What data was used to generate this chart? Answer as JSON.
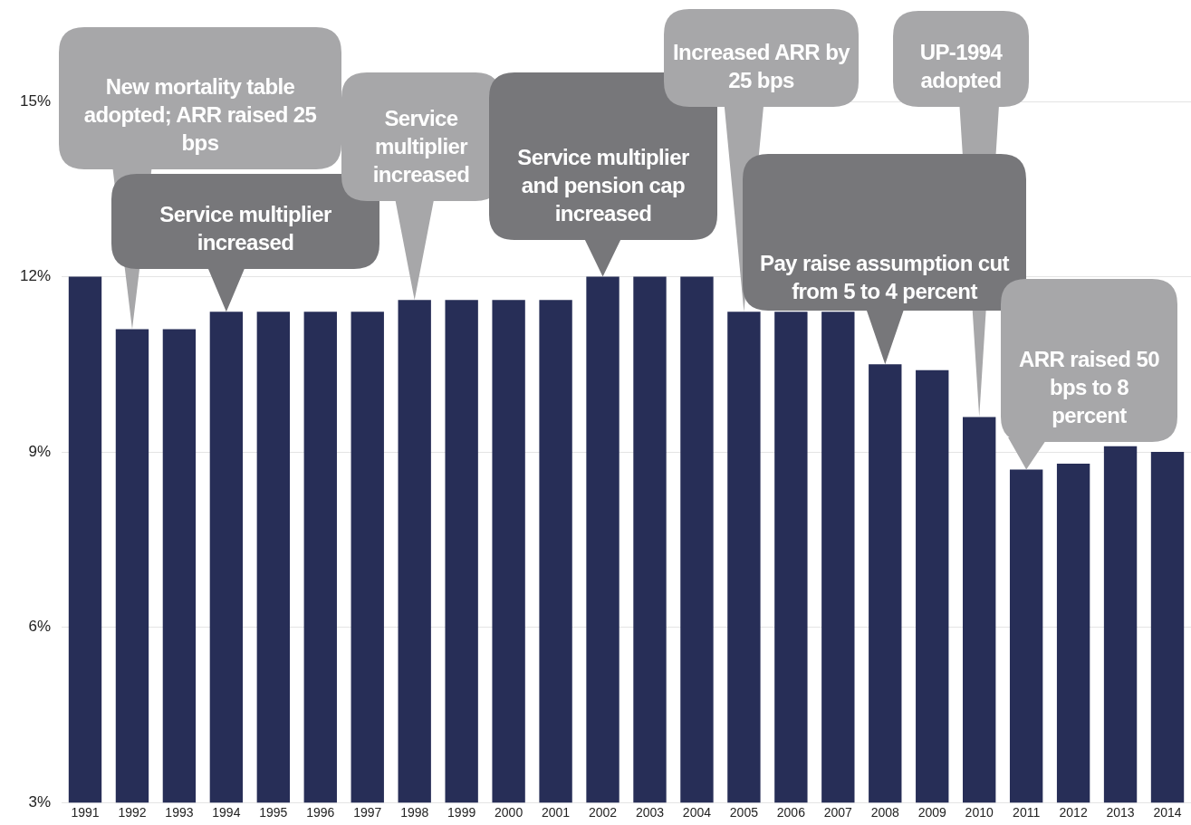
{
  "chart_data": {
    "type": "bar",
    "categories": [
      "1991",
      "1992",
      "1993",
      "1994",
      "1995",
      "1996",
      "1997",
      "1998",
      "1999",
      "2000",
      "2001",
      "2002",
      "2003",
      "2004",
      "2005",
      "2006",
      "2007",
      "2008",
      "2009",
      "2010",
      "2011",
      "2012",
      "2013",
      "2014"
    ],
    "values": [
      12.0,
      11.1,
      11.1,
      11.4,
      11.4,
      11.4,
      11.4,
      11.6,
      11.6,
      11.6,
      11.6,
      12.0,
      12.0,
      12.0,
      11.4,
      11.4,
      11.4,
      10.5,
      10.4,
      9.6,
      8.7,
      8.8,
      9.1,
      9.0
    ],
    "color": "#272e57",
    "ylim": [
      3,
      15
    ],
    "yticks": [
      {
        "value": 3,
        "label": "3%"
      },
      {
        "value": 6,
        "label": "6%"
      },
      {
        "value": 9,
        "label": "9%"
      },
      {
        "value": 12,
        "label": "12%"
      },
      {
        "value": 15,
        "label": "15%"
      }
    ],
    "grid": "y",
    "annotations": [
      {
        "text": "New mortality table adopted; ARR raised 25 bps",
        "x": "1992",
        "y": 11.1
      },
      {
        "text": "Service multiplier increased",
        "x": "1994",
        "y": 11.4
      },
      {
        "text": "Service multiplier increased",
        "x": "1998",
        "y": 11.6
      },
      {
        "text": "Service multiplier and pension cap increased",
        "x": "2002",
        "y": 12.0
      },
      {
        "text": "Increased ARR by 25 bps",
        "x": "2005",
        "y": 11.4
      },
      {
        "text": "UP-1994 adopted",
        "x": "2010",
        "y": 9.6
      },
      {
        "text": "Pay raise assumption cut from 5 to 4 percent",
        "x": "2008",
        "y": 10.5
      },
      {
        "text": "ARR raised 50 bps to 8 percent",
        "x": "2011",
        "y": 8.7
      }
    ]
  }
}
